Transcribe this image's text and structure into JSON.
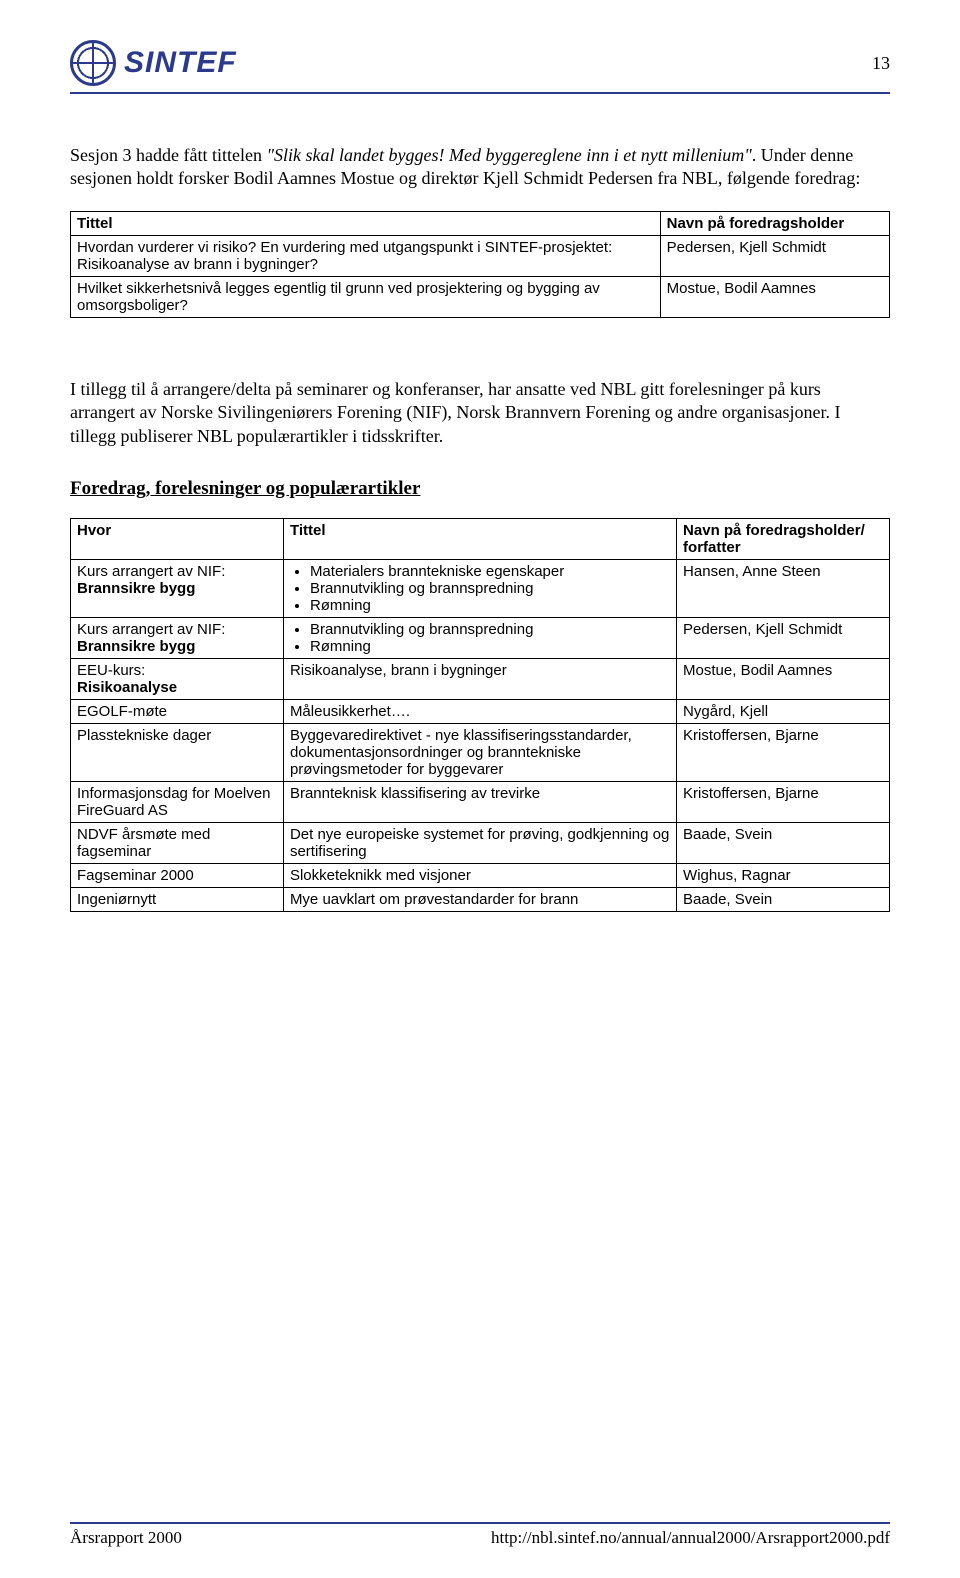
{
  "brand": {
    "name": "SINTEF",
    "accent": "#2b3a8c"
  },
  "page_number": "13",
  "intro": {
    "prefix": "Sesjon 3 hadde fått tittelen ",
    "quoted": "\"Slik skal landet bygges! Med byggereglene inn i et nytt millenium\"",
    "suffix": ". Under denne sesjonen holdt forsker Bodil Aamnes Mostue og direktør Kjell Schmidt Pedersen fra NBL, følgende foredrag:"
  },
  "table1": {
    "headers": [
      "Tittel",
      "Navn på foredragsholder"
    ],
    "rows": [
      [
        "Hvordan vurderer vi risiko? En vurdering med utgangspunkt i SINTEF-prosjektet: Risikoanalyse av brann i bygninger?",
        "Pedersen, Kjell Schmidt"
      ],
      [
        "Hvilket sikkerhetsnivå legges egentlig til grunn ved prosjektering og bygging av omsorgsboliger?",
        "Mostue, Bodil Aamnes"
      ]
    ]
  },
  "mid_paragraph": "I tillegg til å arrangere/delta på seminarer og konferanser, har ansatte ved NBL gitt forelesninger på kurs arrangert av Norske Sivilingeniørers Forening (NIF), Norsk Brannvern Forening og andre organisasjoner. I tillegg publiserer NBL populærartikler i tidsskrifter.",
  "section2_title": "Foredrag, forelesninger og populærartikler",
  "table2": {
    "headers": [
      "Hvor",
      "Tittel",
      "Navn på foredragsholder/ forfatter"
    ],
    "col_widths": [
      "26%",
      "48%",
      "26%"
    ],
    "rows": [
      {
        "hvor_line1": "Kurs arrangert av NIF:",
        "hvor_line2_bold": "Brannsikre bygg",
        "tittel_list": [
          "Materialers branntekniske egenskaper",
          "Brannutvikling og brannspredning",
          "Rømning"
        ],
        "navn": "Hansen, Anne Steen"
      },
      {
        "hvor_line1": "Kurs arrangert av NIF:",
        "hvor_line2_bold": "Brannsikre bygg",
        "tittel_list": [
          "Brannutvikling og brannspredning",
          "Rømning"
        ],
        "navn": "Pedersen, Kjell Schmidt"
      },
      {
        "hvor_line1": "EEU-kurs:",
        "hvor_line2_bold": "Risikoanalyse",
        "tittel_text": "Risikoanalyse, brann i bygninger",
        "navn": "Mostue, Bodil Aamnes"
      },
      {
        "hvor_line1": "EGOLF-møte",
        "tittel_text": "Måleusikkerhet….",
        "navn": "Nygård, Kjell"
      },
      {
        "hvor_line1": "Plasstekniske dager",
        "tittel_text": "Byggevaredirektivet - nye klassifiseringsstandarder, dokumentasjonsordninger og branntekniske prøvingsmetoder for byggevarer",
        "navn": "Kristoffersen, Bjarne"
      },
      {
        "hvor_line1": "Informasjonsdag for Moelven FireGuard AS",
        "tittel_text": "Brannteknisk klassifisering av trevirke",
        "navn": "Kristoffersen, Bjarne"
      },
      {
        "hvor_line1": "NDVF årsmøte med fagseminar",
        "tittel_text": "Det nye europeiske systemet for prøving, godkjenning og sertifisering",
        "navn": "Baade, Svein"
      },
      {
        "hvor_line1": "Fagseminar 2000",
        "tittel_text": "Slokketeknikk med visjoner",
        "navn": "Wighus, Ragnar"
      },
      {
        "hvor_line1": "Ingeniørnytt",
        "tittel_text": "Mye uavklart om prøvestandarder for brann",
        "navn": "Baade, Svein"
      }
    ]
  },
  "footer": {
    "left": "Årsrapport 2000",
    "right": "http://nbl.sintef.no/annual/annual2000/Arsrapport2000.pdf"
  }
}
